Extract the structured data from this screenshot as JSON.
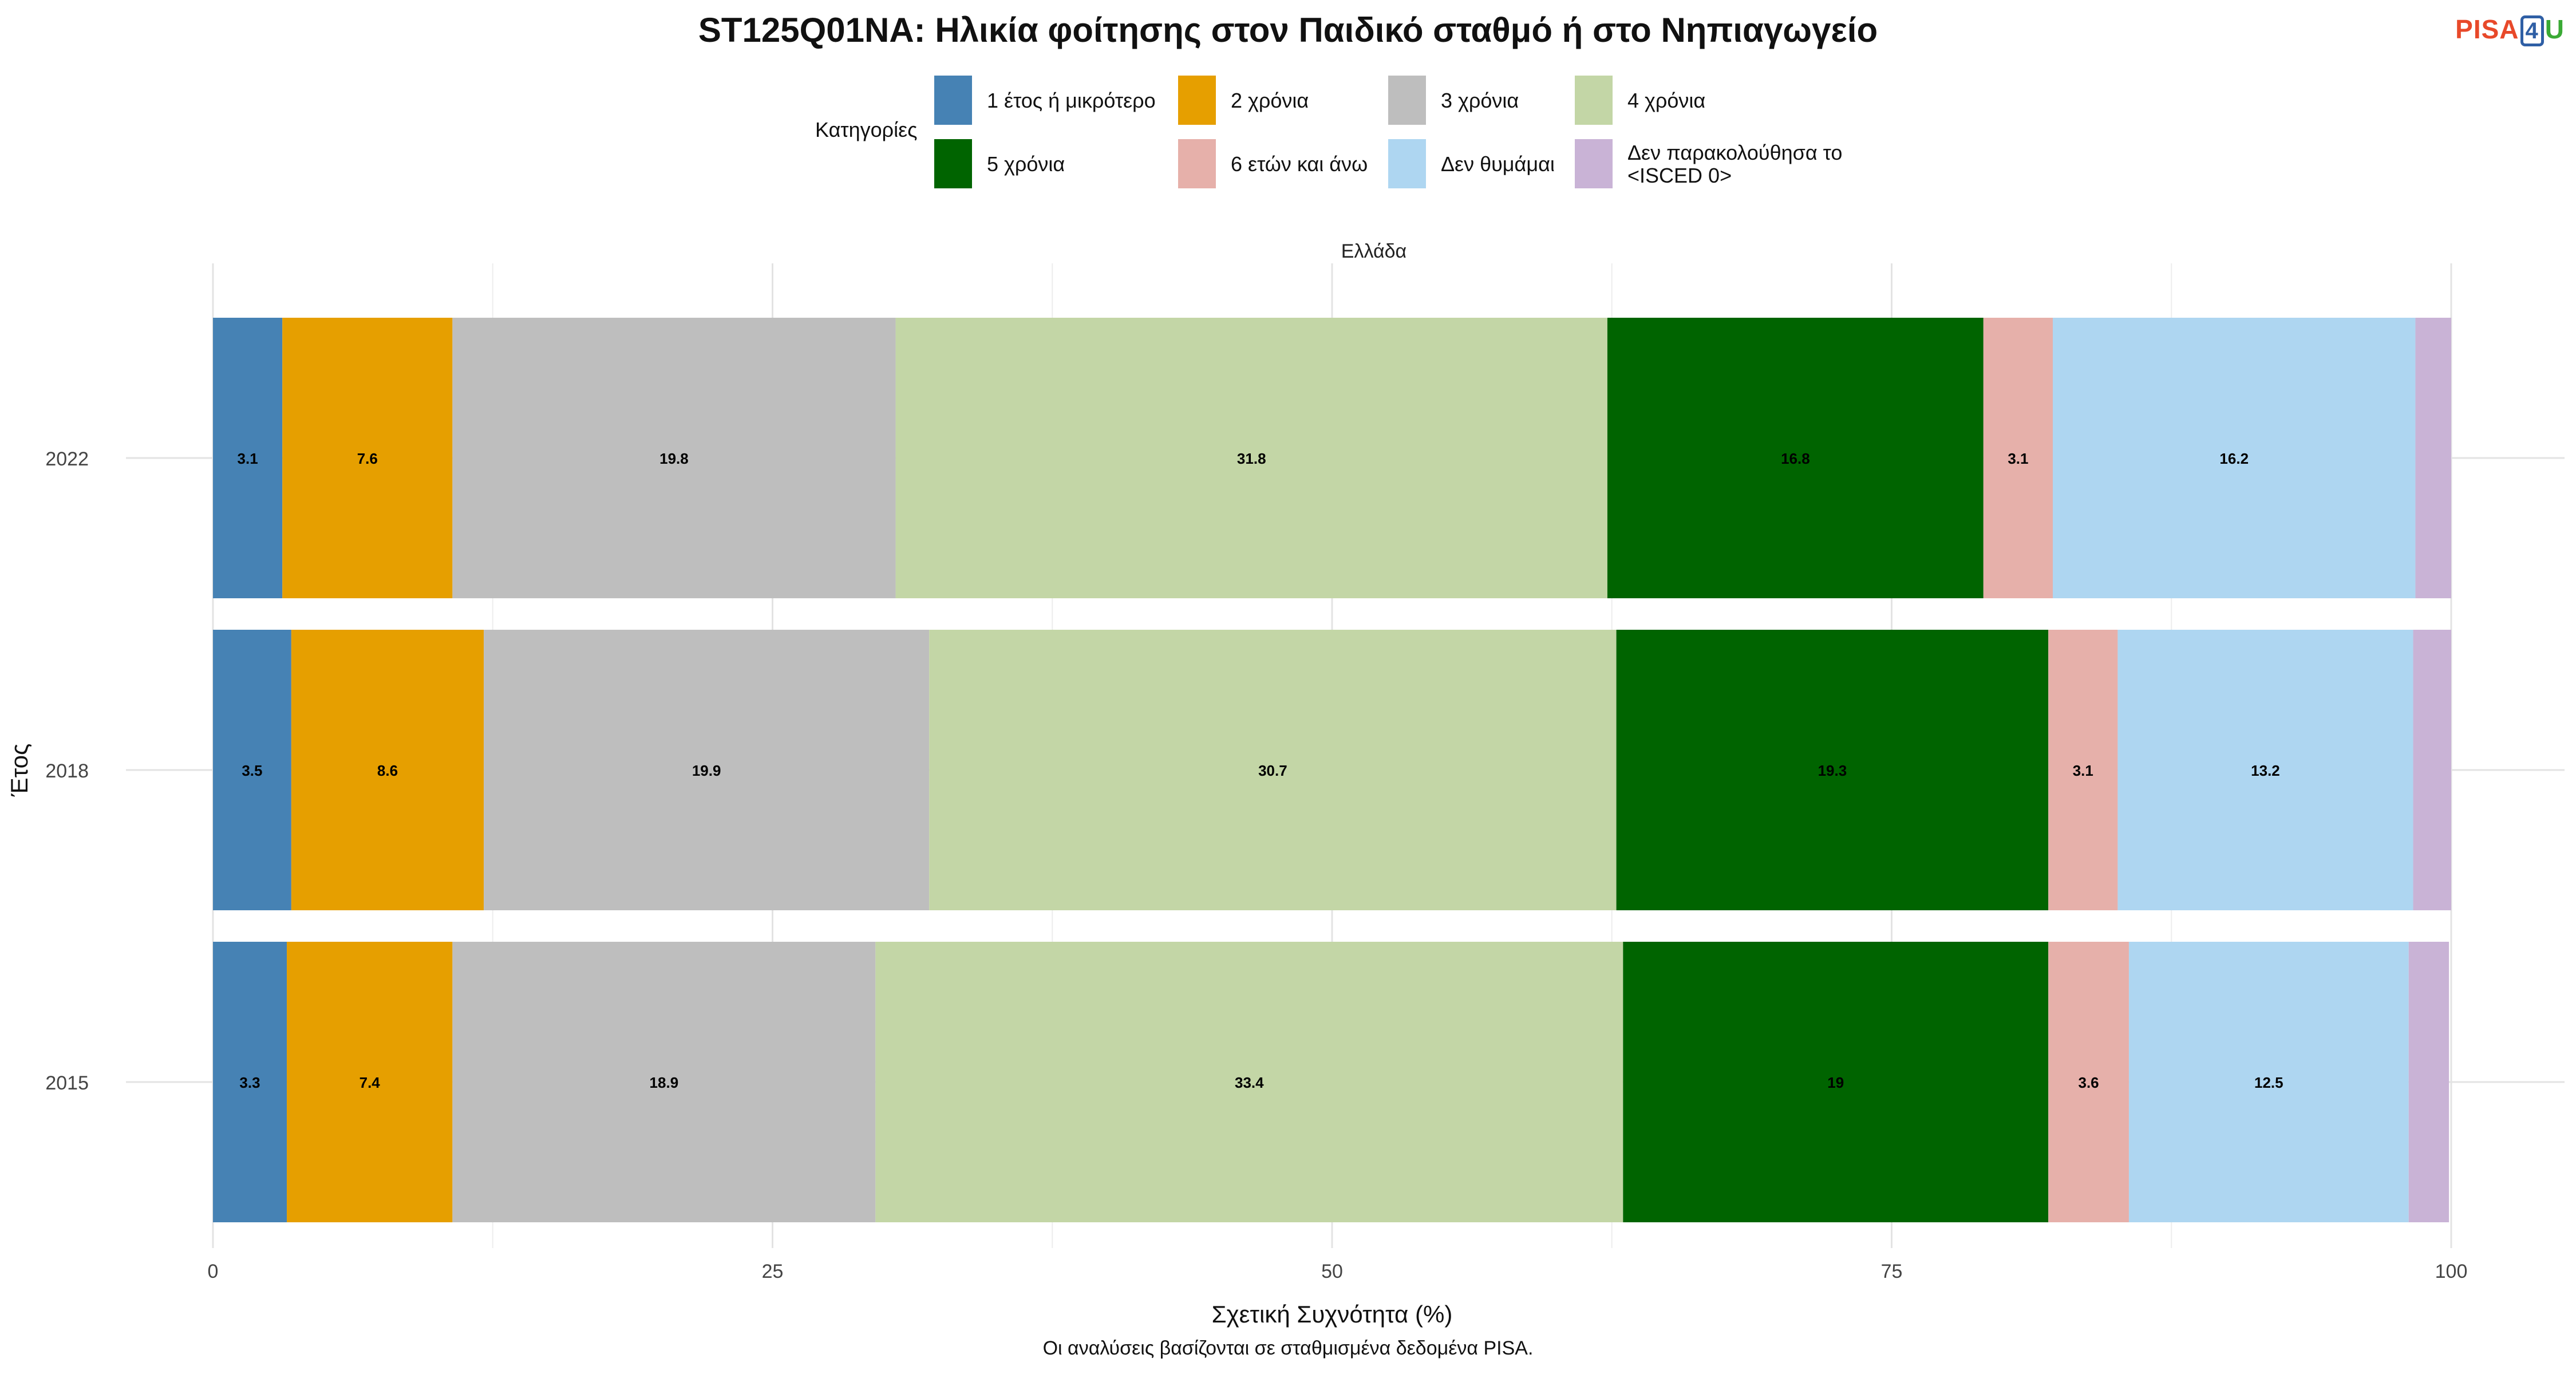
{
  "title": "ST125Q01NA: Ηλικία φοίτησης στον Παιδικό σταθμό ή στο Νηπιαγωγείο",
  "logo": {
    "part1": "PISA",
    "part2": "4",
    "part3": "U"
  },
  "legend": {
    "title": "Κατηγορίες",
    "items": [
      {
        "label": "1 έτος ή μικρότερο",
        "color": "#4682B4"
      },
      {
        "label": "2 χρόνια",
        "color": "#E69F00"
      },
      {
        "label": "3 χρόνια",
        "color": "#BEBEBE"
      },
      {
        "label": "4 χρόνια",
        "color": "#C3D6A6"
      },
      {
        "label": "5 χρόνια",
        "color": "#006400"
      },
      {
        "label": "6 ετών και άνω",
        "color": "#E6B0AA"
      },
      {
        "label": "Δεν θυμάμαι",
        "color": "#AED6F1"
      },
      {
        "label": "Δεν παρακολούθησα το\n<ISCED 0>",
        "color": "#C9B3D6"
      }
    ]
  },
  "caption": "Οι αναλύσεις βασίζονται σε σταθμισμένα δεδομένα PISA.",
  "chart_data": {
    "type": "bar",
    "orientation": "horizontal",
    "stacked": true,
    "facet_label": "Ελλάδα",
    "categories": [
      "2022",
      "2018",
      "2015"
    ],
    "xlabel": "Σχετική Συχνότητα (%)",
    "ylabel": "Έτος",
    "xlim": [
      0,
      100
    ],
    "xticks": [
      0,
      25,
      50,
      75,
      100
    ],
    "grid": true,
    "legend_position": "top",
    "series": [
      {
        "name": "1 έτος ή μικρότερο",
        "values": [
          3.1,
          3.5,
          3.3
        ]
      },
      {
        "name": "2 χρόνια",
        "values": [
          7.6,
          8.6,
          7.4
        ]
      },
      {
        "name": "3 χρόνια",
        "values": [
          19.8,
          19.9,
          18.9
        ]
      },
      {
        "name": "4 χρόνια",
        "values": [
          31.8,
          30.7,
          33.4
        ]
      },
      {
        "name": "5 χρόνια",
        "values": [
          16.8,
          19.3,
          19
        ]
      },
      {
        "name": "6 ετών και άνω",
        "values": [
          3.1,
          3.1,
          3.6
        ]
      },
      {
        "name": "Δεν θυμάμαι",
        "values": [
          16.2,
          13.2,
          12.5
        ]
      },
      {
        "name": "Δεν παρακολούθησα το <ISCED 0>",
        "values": [
          1.6,
          1.7,
          1.8
        ]
      }
    ],
    "label_min": 3
  }
}
